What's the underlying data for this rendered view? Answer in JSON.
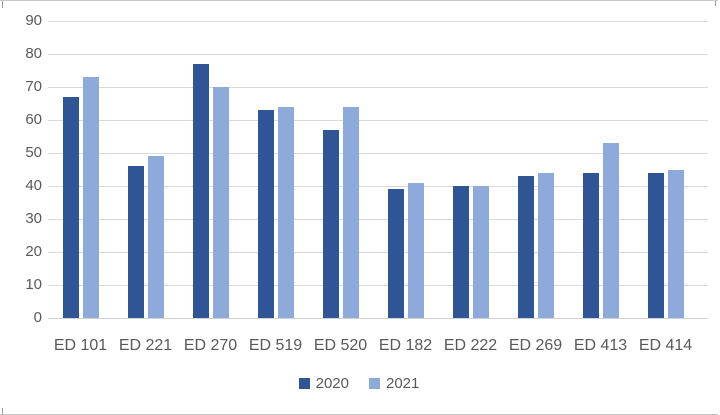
{
  "frame": {
    "border_color": "#c9c9c9",
    "background": "#ffffff"
  },
  "chart_data": {
    "type": "bar",
    "title": "",
    "xlabel": "",
    "ylabel": "",
    "categories": [
      "ED 101",
      "ED 221",
      "ED 270",
      "ED 519",
      "ED 520",
      "ED 182",
      "ED 222",
      "ED 269",
      "ED 413",
      "ED 414"
    ],
    "series": [
      {
        "name": "2020",
        "color": "#2F5597",
        "values": [
          67,
          46,
          77,
          63,
          57,
          39,
          40,
          43,
          44,
          44
        ]
      },
      {
        "name": "2021",
        "color": "#8EAADB",
        "values": [
          73,
          49,
          70,
          64,
          64,
          41,
          40,
          44,
          53,
          45
        ]
      }
    ],
    "ylim": [
      0,
      90
    ],
    "ytick_step": 10,
    "ytick_labels": [
      "0",
      "10",
      "20",
      "30",
      "40",
      "50",
      "60",
      "70",
      "80",
      "90"
    ],
    "grid": true,
    "gridline_color": "#d9d9d9",
    "axis_text_color": "#595959",
    "legend_position": "bottom"
  }
}
